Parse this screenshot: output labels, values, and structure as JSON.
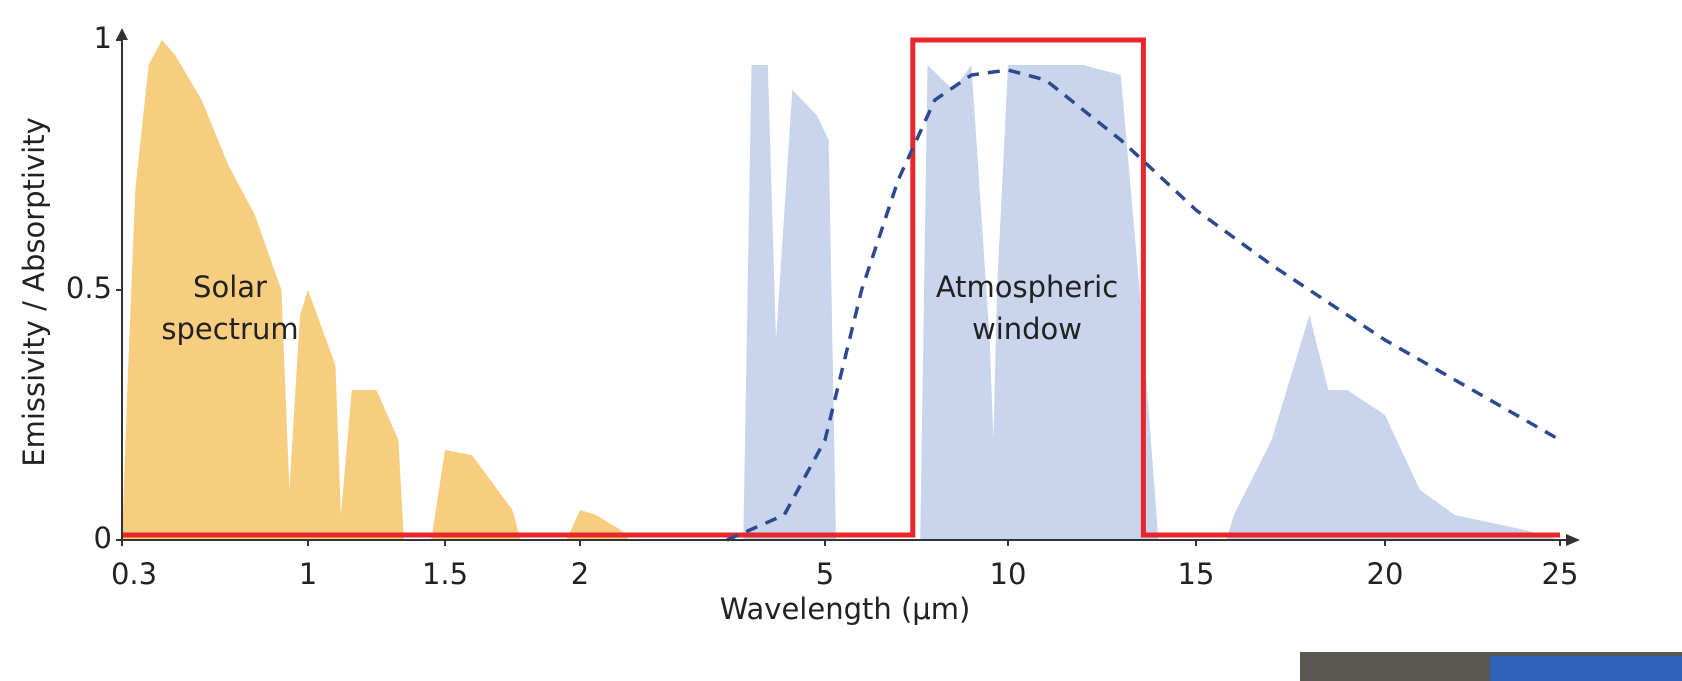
{
  "chart_data": {
    "type": "line",
    "x_label": "Wavelength (μm)",
    "y_label": "Emissivity / Absorptivity",
    "annotations": [
      "Solar spectrum",
      "Atmospheric window"
    ],
    "xlim": [
      0.3,
      25
    ],
    "xticks": [
      0.3,
      1,
      1.5,
      2,
      5,
      10,
      15,
      20,
      25
    ],
    "ylim": [
      0,
      1
    ],
    "yticks": [
      0,
      0.5,
      1
    ],
    "series": [
      {
        "color": "#f7cd80",
        "fill": true,
        "x": [
          0.3,
          0.32,
          0.35,
          0.4,
          0.45,
          0.5,
          0.6,
          0.7,
          0.8,
          0.9,
          0.93,
          0.97,
          1.0,
          1.1,
          1.12,
          1.16,
          1.25,
          1.33,
          1.35,
          1.45,
          1.5,
          1.6,
          1.75,
          1.78,
          1.95,
          2.0,
          2.2,
          2.5,
          2.6
        ],
        "values": [
          0,
          0.3,
          0.7,
          0.95,
          1.0,
          0.97,
          0.88,
          0.75,
          0.65,
          0.5,
          0.1,
          0.45,
          0.5,
          0.35,
          0.05,
          0.3,
          0.3,
          0.2,
          0,
          0,
          0.18,
          0.17,
          0.06,
          0,
          0,
          0.06,
          0.05,
          0.02,
          0
        ]
      },
      {
        "color": "#c9d5ec",
        "fill": true,
        "x": [
          4.0,
          4.1,
          4.3,
          4.4,
          4.6,
          4.9,
          5.1,
          5.3,
          7.6,
          7.8,
          8.5,
          9.0,
          9.5,
          9.6,
          9.7,
          10.0,
          12,
          13,
          13.5,
          14,
          15.8,
          16,
          17,
          18,
          18.5,
          19,
          20,
          21,
          22,
          24,
          25
        ],
        "values": [
          0,
          0.95,
          0.95,
          0.4,
          0.9,
          0.85,
          0.8,
          0,
          0,
          0.95,
          0.9,
          0.95,
          0.4,
          0.2,
          0.5,
          0.95,
          0.95,
          0.93,
          0.5,
          0,
          0,
          0.05,
          0.2,
          0.45,
          0.3,
          0.3,
          0.25,
          0.1,
          0.05,
          0.02,
          0
        ]
      },
      {
        "color": "#e8262b",
        "fill": false,
        "dashed": false,
        "x": [
          0.3,
          7.4,
          7.4,
          13.6,
          13.6,
          25
        ],
        "values": [
          0.01,
          0.01,
          1,
          1,
          0.01,
          0.01
        ]
      },
      {
        "color": "#2e4a8e",
        "fill": false,
        "dashed": true,
        "x": [
          3.8,
          4.5,
          5,
          6,
          7,
          8,
          9,
          10,
          11,
          12,
          13,
          14,
          15,
          17,
          20,
          22,
          25
        ],
        "values": [
          0,
          0.05,
          0.2,
          0.5,
          0.72,
          0.88,
          0.93,
          0.94,
          0.92,
          0.86,
          0.8,
          0.73,
          0.66,
          0.55,
          0.4,
          0.32,
          0.2
        ]
      }
    ]
  }
}
